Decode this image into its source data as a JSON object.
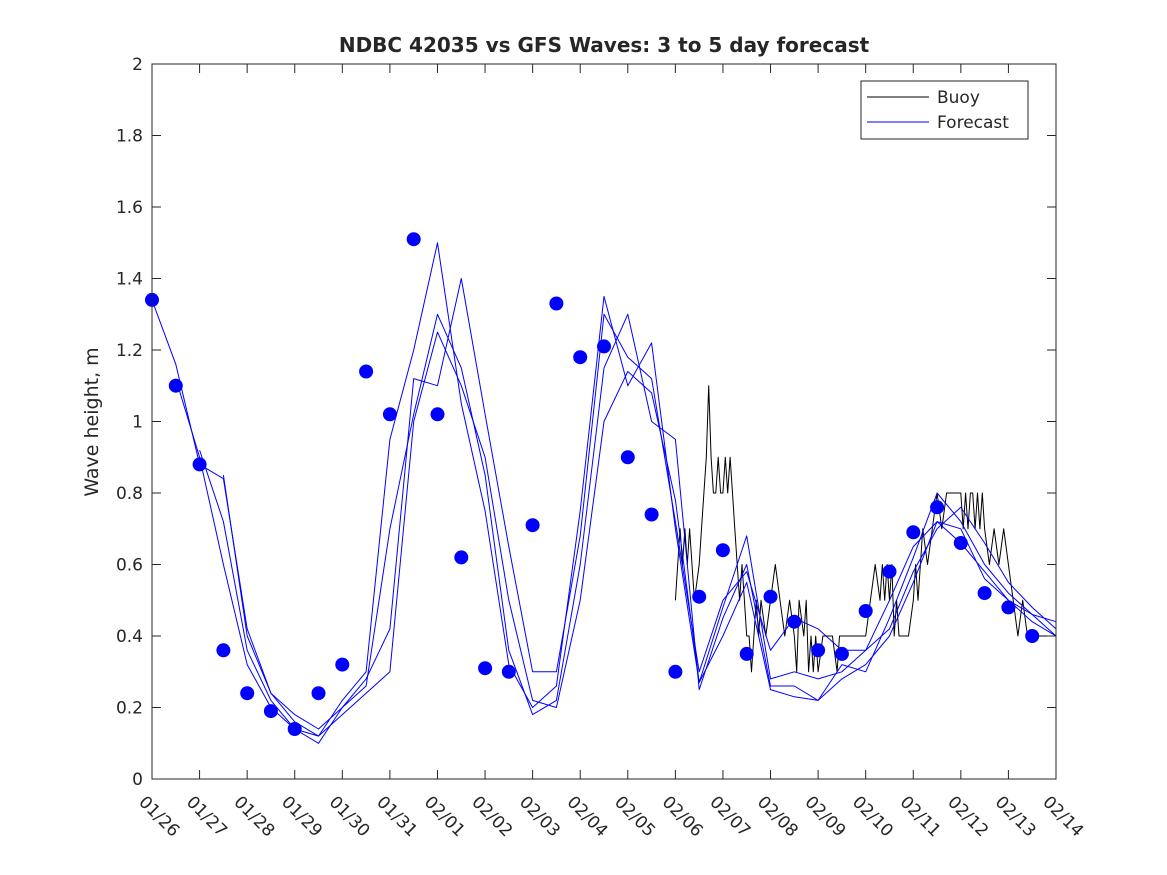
{
  "chart_data": {
    "type": "line",
    "title": "NDBC 42035 vs GFS Waves: 3 to 5 day forecast",
    "xlabel": "",
    "ylabel": "Wave height, m",
    "x_units": "days since 01/26 00:00",
    "xlim": [
      0,
      19
    ],
    "ylim": [
      0,
      2
    ],
    "yticks": [
      0,
      0.2,
      0.4,
      0.6,
      0.8,
      1,
      1.2,
      1.4,
      1.6,
      1.8,
      2
    ],
    "ytick_labels": [
      "0",
      "0.2",
      "0.4",
      "0.6",
      "0.8",
      "1",
      "1.2",
      "1.4",
      "1.6",
      "1.8",
      "2"
    ],
    "xticks": [
      0,
      1,
      2,
      3,
      4,
      5,
      6,
      7,
      8,
      9,
      10,
      11,
      12,
      13,
      14,
      15,
      16,
      17,
      18,
      19
    ],
    "xtick_labels": [
      "01/26",
      "01/27",
      "01/28",
      "01/29",
      "01/30",
      "01/31",
      "02/01",
      "02/02",
      "02/03",
      "02/04",
      "02/05",
      "02/06",
      "02/07",
      "02/08",
      "02/09",
      "02/10",
      "02/11",
      "02/12",
      "02/13",
      "02/14"
    ],
    "grid": false,
    "legend": {
      "position": "top-right",
      "entries": [
        "Buoy",
        "Forecast"
      ]
    },
    "series": [
      {
        "name": "Buoy",
        "color": "#000000",
        "x": [
          11.0,
          11.05,
          11.1,
          11.15,
          11.2,
          11.25,
          11.3,
          11.35,
          11.4,
          11.5,
          11.55,
          11.6,
          11.65,
          11.7,
          11.75,
          11.8,
          11.85,
          11.9,
          11.95,
          12.0,
          12.05,
          12.1,
          12.15,
          12.2,
          12.25,
          12.3,
          12.35,
          12.4,
          12.45,
          12.5,
          12.55,
          12.6,
          12.65,
          12.7,
          12.75,
          12.8,
          12.9,
          13.0,
          13.1,
          13.2,
          13.3,
          13.4,
          13.5,
          13.55,
          13.6,
          13.7,
          13.75,
          13.8,
          13.85,
          13.9,
          13.95,
          14.0,
          14.1,
          14.2,
          14.3,
          14.4,
          14.45,
          14.5,
          14.6,
          14.7,
          14.8,
          14.9,
          15.0,
          15.1,
          15.2,
          15.3,
          15.35,
          15.4,
          15.45,
          15.5,
          15.55,
          15.6,
          15.65,
          15.7,
          15.8,
          15.9,
          16.0,
          16.05,
          16.1,
          16.15,
          16.2,
          16.3,
          16.4,
          16.5,
          16.6,
          16.7,
          16.8,
          16.9,
          17.0,
          17.05,
          17.1,
          17.15,
          17.2,
          17.25,
          17.3,
          17.35,
          17.4,
          17.45,
          17.5,
          17.6,
          17.7,
          17.8,
          17.9,
          18.0,
          18.1,
          18.2,
          18.3,
          18.4,
          18.5,
          18.6,
          18.7,
          18.8,
          18.9,
          19.0
        ],
        "y": [
          0.5,
          0.6,
          0.7,
          0.6,
          0.7,
          0.6,
          0.7,
          0.6,
          0.5,
          0.6,
          0.7,
          0.8,
          0.9,
          1.1,
          0.9,
          0.8,
          0.8,
          0.9,
          0.8,
          0.8,
          0.9,
          0.8,
          0.9,
          0.8,
          0.7,
          0.6,
          0.5,
          0.6,
          0.5,
          0.4,
          0.4,
          0.3,
          0.4,
          0.5,
          0.4,
          0.5,
          0.4,
          0.5,
          0.6,
          0.5,
          0.4,
          0.5,
          0.4,
          0.3,
          0.5,
          0.4,
          0.5,
          0.3,
          0.4,
          0.3,
          0.4,
          0.3,
          0.4,
          0.4,
          0.4,
          0.3,
          0.4,
          0.4,
          0.4,
          0.4,
          0.4,
          0.4,
          0.4,
          0.5,
          0.6,
          0.5,
          0.6,
          0.5,
          0.6,
          0.5,
          0.6,
          0.4,
          0.5,
          0.4,
          0.4,
          0.4,
          0.5,
          0.6,
          0.5,
          0.6,
          0.7,
          0.6,
          0.7,
          0.8,
          0.7,
          0.8,
          0.8,
          0.8,
          0.8,
          0.7,
          0.8,
          0.7,
          0.8,
          0.8,
          0.7,
          0.8,
          0.7,
          0.8,
          0.7,
          0.6,
          0.7,
          0.6,
          0.7,
          0.6,
          0.5,
          0.4,
          0.5,
          0.4,
          0.4,
          0.4,
          0.4,
          0.4,
          0.4,
          0.4
        ]
      },
      {
        "name": "Forecast",
        "color": "#0000ff",
        "x": [
          0,
          0.5,
          1,
          1.5,
          2,
          2.5,
          3,
          3.5,
          4,
          4.5,
          5,
          5.5,
          6,
          6.5,
          7,
          7.5,
          8,
          8.5,
          9,
          9.5,
          10,
          10.5,
          11,
          11.5,
          12,
          12.5,
          13,
          13.5,
          14,
          14.5,
          15,
          15.5,
          16,
          16.5,
          17,
          17.5,
          18,
          18.5,
          19
        ],
        "y": [
          1.34,
          1.16,
          0.88,
          0.84,
          0.42,
          0.24,
          0.18,
          0.14,
          0.2,
          0.28,
          0.42,
          1.12,
          1.1,
          1.4,
          1.02,
          0.65,
          0.3,
          0.3,
          0.68,
          1.3,
          1.18,
          1.12,
          0.72,
          0.3,
          0.5,
          0.58,
          0.36,
          0.45,
          0.42,
          0.36,
          0.36,
          0.42,
          0.58,
          0.7,
          0.76,
          0.66,
          0.55,
          0.48,
          0.42
        ]
      },
      {
        "name": "Forecast",
        "color": "#0000ff",
        "x": [
          0.5,
          1,
          1.5,
          2,
          2.5,
          3,
          3.5,
          4,
          4.5,
          5,
          5.5,
          6,
          6.5,
          7,
          7.5,
          8,
          8.5,
          9,
          9.5,
          10,
          10.5,
          11,
          11.5,
          12,
          12.5,
          13,
          13.5,
          14,
          14.5,
          15,
          15.5,
          16,
          16.5,
          17,
          17.5,
          18,
          18.5,
          19
        ],
        "y": [
          1.12,
          0.9,
          0.6,
          0.32,
          0.2,
          0.14,
          0.12,
          0.22,
          0.3,
          0.95,
          1.2,
          1.5,
          1.05,
          0.75,
          0.32,
          0.2,
          0.26,
          0.75,
          1.35,
          1.1,
          1.22,
          0.7,
          0.27,
          0.48,
          0.68,
          0.28,
          0.3,
          0.28,
          0.3,
          0.36,
          0.5,
          0.65,
          0.72,
          0.66,
          0.58,
          0.5,
          0.46,
          0.4
        ]
      },
      {
        "name": "Forecast",
        "color": "#0000ff",
        "x": [
          1,
          1.5,
          2,
          2.5,
          3,
          3.5,
          4,
          4.5,
          5,
          5.5,
          6,
          6.5,
          7,
          7.5,
          8,
          8.5,
          9,
          9.5,
          10,
          10.5,
          11,
          11.5,
          12,
          12.5,
          13,
          13.5,
          14,
          14.5,
          15,
          15.5,
          16,
          16.5,
          17,
          17.5,
          18,
          18.5,
          19
        ],
        "y": [
          0.92,
          0.72,
          0.36,
          0.22,
          0.14,
          0.1,
          0.2,
          0.26,
          0.7,
          1.02,
          1.3,
          1.15,
          0.85,
          0.36,
          0.18,
          0.22,
          0.6,
          1.15,
          1.3,
          1.0,
          0.95,
          0.25,
          0.45,
          0.6,
          0.26,
          0.26,
          0.22,
          0.32,
          0.3,
          0.45,
          0.62,
          0.8,
          0.72,
          0.6,
          0.52,
          0.46,
          0.44
        ]
      },
      {
        "name": "Forecast",
        "color": "#0000ff",
        "x": [
          1.5,
          2,
          2.5,
          3,
          3.5,
          4,
          4.5,
          5,
          5.5,
          6,
          6.5,
          7,
          7.5,
          8,
          8.5,
          9,
          9.5,
          10,
          10.5,
          11,
          11.5,
          12,
          12.5,
          13,
          13.5,
          14,
          14.5,
          15,
          15.5,
          16,
          16.5,
          17,
          17.5,
          18,
          18.5,
          19
        ],
        "y": [
          0.85,
          0.4,
          0.24,
          0.16,
          0.12,
          0.18,
          0.24,
          0.3,
          1.0,
          1.25,
          1.1,
          0.9,
          0.5,
          0.22,
          0.2,
          0.5,
          1.0,
          1.14,
          1.08,
          0.78,
          0.27,
          0.4,
          0.55,
          0.25,
          0.23,
          0.22,
          0.28,
          0.32,
          0.4,
          0.55,
          0.72,
          0.7,
          0.56,
          0.5,
          0.44,
          0.4
        ]
      }
    ],
    "markers": {
      "name": "Forecast points",
      "color": "#0000ff",
      "x": [
        0,
        0.5,
        1,
        1.5,
        2,
        2.5,
        3,
        3.5,
        4,
        4.5,
        5,
        5.5,
        6,
        6.5,
        7,
        7.5,
        8,
        8.5,
        9,
        9.5,
        10,
        10.5,
        11,
        11.5,
        12,
        12.5,
        13,
        13.5,
        14,
        14.5,
        15,
        15.5,
        16,
        16.5,
        17,
        17.5,
        18,
        18.5
      ],
      "y": [
        1.34,
        1.1,
        0.88,
        0.36,
        0.24,
        0.19,
        0.14,
        0.24,
        0.32,
        1.14,
        1.02,
        1.51,
        1.02,
        0.62,
        0.31,
        0.3,
        0.71,
        1.33,
        1.18,
        1.21,
        0.9,
        0.74,
        0.3,
        0.51,
        0.64,
        0.35,
        0.51,
        0.44,
        0.36,
        0.35,
        0.47,
        0.58,
        0.69,
        0.76,
        0.66,
        0.52,
        0.48,
        0.4
      ]
    }
  }
}
